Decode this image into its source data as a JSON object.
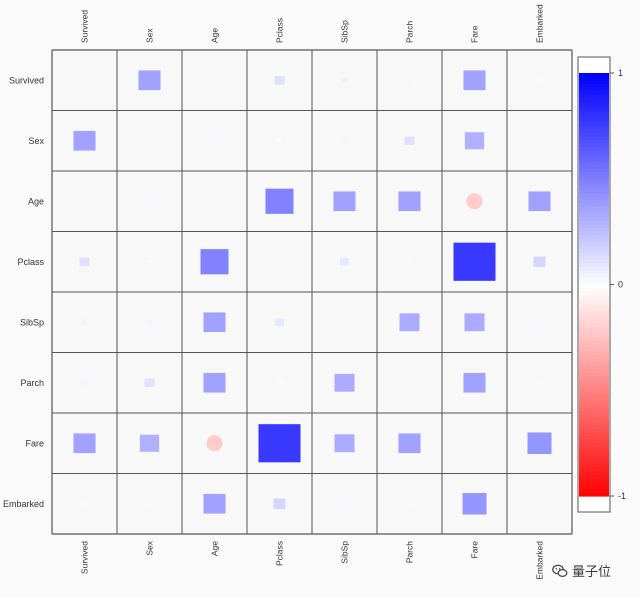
{
  "chart_data": {
    "type": "heatmap",
    "variables": [
      "Survived",
      "Sex",
      "Age",
      "Pclass",
      "SibSp",
      "Parch",
      "Fare",
      "Embarked"
    ],
    "matrix": [
      [
        0,
        0.45,
        0.0,
        0.15,
        0.06,
        0.05,
        0.45,
        0.03
      ],
      [
        0.45,
        0,
        0.04,
        0.02,
        0.05,
        0.15,
        0.38,
        0.03
      ],
      [
        0.0,
        0.04,
        0,
        0.6,
        0.45,
        0.45,
        -0.25,
        0.45
      ],
      [
        0.15,
        0.02,
        0.6,
        0,
        0.12,
        0.02,
        0.95,
        0.2
      ],
      [
        0.06,
        0.05,
        0.45,
        0.12,
        0,
        0.4,
        0.4,
        0.04
      ],
      [
        0.05,
        0.15,
        0.45,
        0.02,
        0.4,
        0,
        0.45,
        0.03
      ],
      [
        0.45,
        0.38,
        -0.25,
        0.95,
        0.4,
        0.45,
        0,
        0.5
      ],
      [
        0.03,
        0.03,
        0.45,
        0.2,
        0.04,
        0.03,
        0.5,
        0
      ]
    ],
    "circle_cells": [
      [
        2,
        6
      ],
      [
        6,
        2
      ]
    ],
    "color_scale": {
      "min": -1,
      "max": 1,
      "low": "#ff0000",
      "mid": "#ffffff",
      "high": "#0000ff"
    },
    "colorbar_ticks": [
      {
        "value": 1,
        "label": "1"
      },
      {
        "value": 0,
        "label": "0"
      },
      {
        "value": -1,
        "label": "-1"
      }
    ]
  },
  "colors": {
    "grid": "#555555",
    "label": "#333333",
    "background": "#fafafa"
  },
  "watermark": {
    "text": "量子位",
    "icon": "wechat-icon"
  }
}
